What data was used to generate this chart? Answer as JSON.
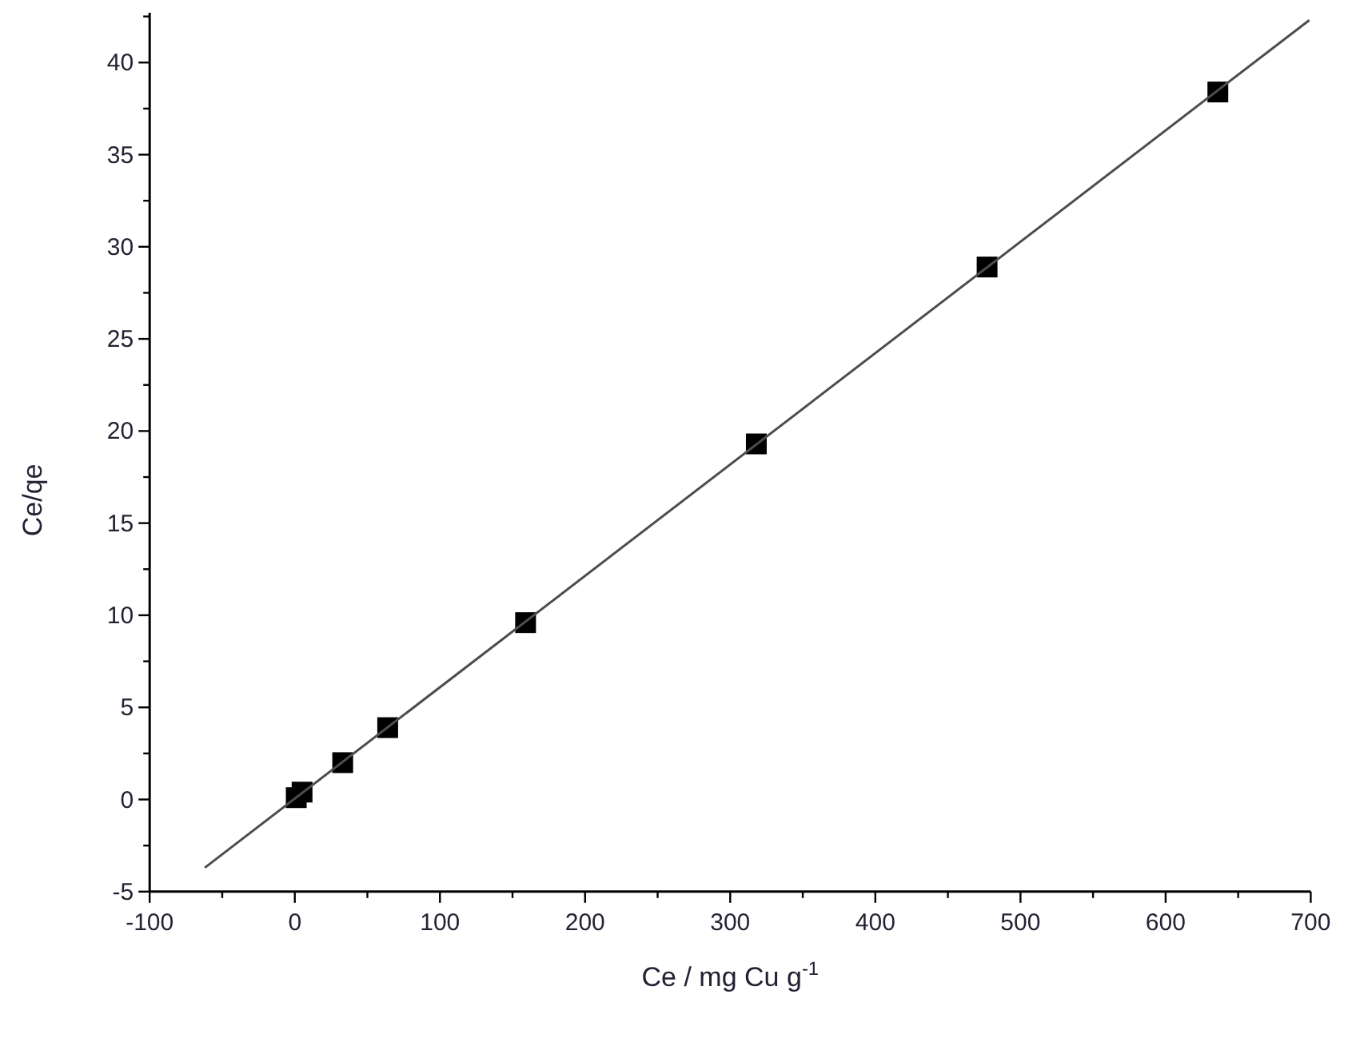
{
  "chart_data": {
    "type": "scatter",
    "xlabel": "Ce / mg Cu g$^{-1}$",
    "ylabel": "Ce/qe",
    "marker": "square",
    "grid": false,
    "xlim": [
      -100,
      700
    ],
    "ylim": [
      -5,
      42.7
    ],
    "xticks": [
      -100,
      {
        "value": -50,
        "label": null
      },
      0,
      {
        "value": 50,
        "label": null
      },
      100,
      {
        "value": 150,
        "label": null
      },
      200,
      {
        "value": 250,
        "label": null
      },
      300,
      {
        "value": 350,
        "label": null
      },
      400,
      {
        "value": 450,
        "label": null
      },
      500,
      {
        "value": 550,
        "label": null
      },
      600,
      {
        "value": 650,
        "label": null
      },
      700
    ],
    "yticks": [
      -5,
      {
        "value": -2.5,
        "label": null
      },
      0,
      {
        "value": 2.5,
        "label": null
      },
      5,
      {
        "value": 7.5,
        "label": null
      },
      10,
      {
        "value": 12.5,
        "label": null
      },
      15,
      {
        "value": 17.5,
        "label": null
      },
      20,
      {
        "value": 22.5,
        "label": null
      },
      25,
      {
        "value": 27.5,
        "label": null
      },
      30,
      {
        "value": 32.5,
        "label": null
      },
      35,
      {
        "value": 37.5,
        "label": null
      },
      40,
      {
        "value": 42.5,
        "label": null
      }
    ],
    "series": [
      {
        "color": "#000000",
        "x": [
          1,
          5,
          33,
          64,
          159,
          318,
          477,
          636
        ],
        "values": [
          0.1,
          0.4,
          2,
          3.9,
          9.6,
          19.3,
          28.9,
          38.4
        ]
      },
      {
        "type": "line",
        "color": "#4d4d4d",
        "line_style": "solid",
        "marker": "none",
        "x": [
          -62,
          699
        ],
        "values": [
          -3.7,
          42.3
        ]
      }
    ]
  }
}
